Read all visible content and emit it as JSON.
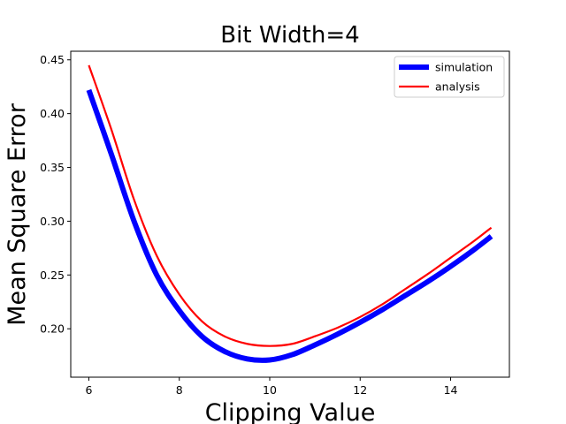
{
  "chart_data": {
    "type": "line",
    "title": "Bit Width=4",
    "xlabel": "Clipping Value",
    "ylabel": "Mean Square Error",
    "xlim": [
      5.6,
      15.3
    ],
    "ylim": [
      0.155,
      0.458
    ],
    "xticks": [
      6,
      8,
      10,
      12,
      14
    ],
    "yticks": [
      0.2,
      0.25,
      0.3,
      0.35,
      0.4,
      0.45
    ],
    "xtick_labels": [
      "6",
      "8",
      "10",
      "12",
      "14"
    ],
    "ytick_labels": [
      "0.20",
      "0.25",
      "0.30",
      "0.35",
      "0.40",
      "0.45"
    ],
    "grid": false,
    "legend_position": "top-right",
    "series": [
      {
        "name": "simulation",
        "color": "#0000ff",
        "x": [
          6.0,
          6.5,
          7.0,
          7.5,
          8.0,
          8.5,
          9.0,
          9.5,
          10.0,
          10.5,
          11.0,
          11.5,
          12.0,
          12.5,
          13.0,
          13.5,
          14.0,
          14.5,
          14.9
        ],
        "y": [
          0.422,
          0.362,
          0.3,
          0.25,
          0.217,
          0.193,
          0.179,
          0.172,
          0.171,
          0.176,
          0.185,
          0.195,
          0.206,
          0.218,
          0.231,
          0.244,
          0.258,
          0.273,
          0.286
        ]
      },
      {
        "name": "analysis",
        "color": "#ff0000",
        "x": [
          6.0,
          6.5,
          7.0,
          7.5,
          8.0,
          8.5,
          9.0,
          9.5,
          10.0,
          10.5,
          11.0,
          11.5,
          12.0,
          12.5,
          13.0,
          13.5,
          14.0,
          14.5,
          14.9
        ],
        "y": [
          0.445,
          0.385,
          0.32,
          0.268,
          0.232,
          0.207,
          0.193,
          0.186,
          0.184,
          0.186,
          0.193,
          0.201,
          0.211,
          0.223,
          0.237,
          0.251,
          0.266,
          0.281,
          0.294
        ]
      }
    ]
  }
}
